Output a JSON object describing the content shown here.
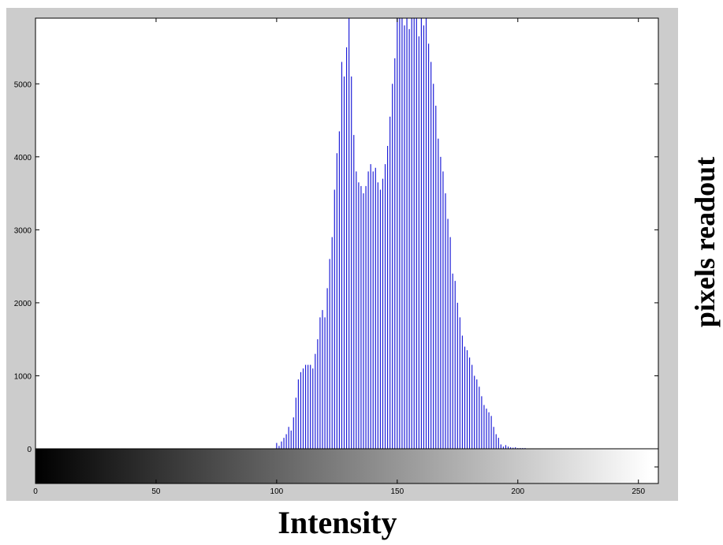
{
  "chart_data": {
    "type": "bar",
    "title": "",
    "xlabel": "Intensity",
    "ylabel": "pixels readout",
    "xlim": [
      0,
      255
    ],
    "ylim": [
      0,
      5900
    ],
    "xticks": [
      0,
      50,
      100,
      150,
      200,
      250
    ],
    "yticks": [
      0,
      1000,
      2000,
      3000,
      4000,
      5000
    ],
    "grid": false,
    "colorbar": "grayscale 0 to 255",
    "bar_color": "#1f1fd8",
    "x": [
      100,
      101,
      102,
      103,
      104,
      105,
      106,
      107,
      108,
      109,
      110,
      111,
      112,
      113,
      114,
      115,
      116,
      117,
      118,
      119,
      120,
      121,
      122,
      123,
      124,
      125,
      126,
      127,
      128,
      129,
      130,
      131,
      132,
      133,
      134,
      135,
      136,
      137,
      138,
      139,
      140,
      141,
      142,
      143,
      144,
      145,
      146,
      147,
      148,
      149,
      150,
      151,
      152,
      153,
      154,
      155,
      156,
      157,
      158,
      159,
      160,
      161,
      162,
      163,
      164,
      165,
      166,
      167,
      168,
      169,
      170,
      171,
      172,
      173,
      174,
      175,
      176,
      177,
      178,
      179,
      180,
      181,
      182,
      183,
      184,
      185,
      186,
      187,
      188,
      189,
      190,
      191,
      192,
      193,
      194,
      195,
      196,
      197,
      198,
      199,
      200,
      201,
      202,
      203
    ],
    "values": [
      80,
      40,
      100,
      150,
      200,
      300,
      250,
      430,
      700,
      950,
      1050,
      1100,
      1150,
      1150,
      1150,
      1100,
      1300,
      1500,
      1800,
      1900,
      1800,
      2200,
      2600,
      2900,
      3550,
      4050,
      4350,
      5300,
      5100,
      5500,
      5900,
      5100,
      4300,
      3800,
      3650,
      3600,
      3500,
      3600,
      3800,
      3900,
      3800,
      3850,
      3650,
      3550,
      3700,
      3900,
      4150,
      4550,
      5000,
      5350,
      5900,
      5900,
      5900,
      5800,
      5900,
      5750,
      5900,
      5900,
      5900,
      5650,
      5900,
      5800,
      5900,
      5550,
      5300,
      5000,
      4700,
      4250,
      4000,
      3800,
      3500,
      3150,
      2900,
      2400,
      2300,
      2000,
      1800,
      1550,
      1400,
      1350,
      1250,
      1150,
      1000,
      950,
      850,
      720,
      600,
      550,
      500,
      450,
      300,
      200,
      150,
      60,
      30,
      50,
      30,
      20,
      15,
      20,
      10,
      10,
      10,
      10
    ]
  }
}
